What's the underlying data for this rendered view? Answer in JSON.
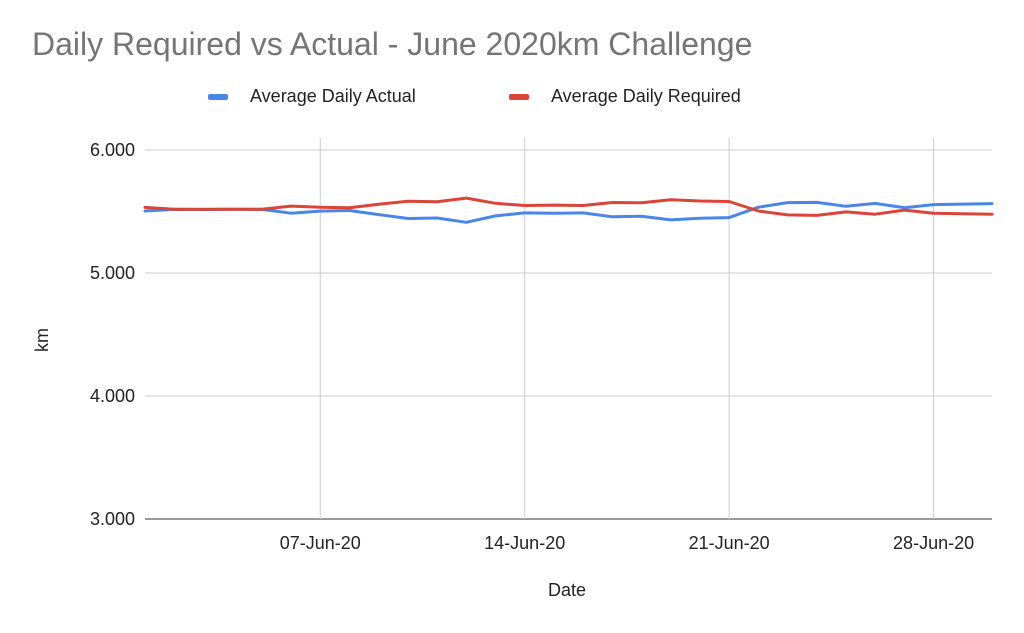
{
  "chart_data": {
    "type": "line",
    "title": "Daily Required vs Actual - June 2020km Challenge",
    "xlabel": "Date",
    "ylabel": "km",
    "ylim": [
      3.0,
      6.0
    ],
    "xlim": [
      "2020-06-01",
      "2020-06-30"
    ],
    "y_ticks": [
      "3.000",
      "4.000",
      "5.000",
      "6.000"
    ],
    "x_ticks": [
      {
        "date": "2020-06-07",
        "label": "07-Jun-20"
      },
      {
        "date": "2020-06-14",
        "label": "14-Jun-20"
      },
      {
        "date": "2020-06-21",
        "label": "21-Jun-20"
      },
      {
        "date": "2020-06-28",
        "label": "28-Jun-20"
      }
    ],
    "grid": true,
    "legend_position": "top",
    "x": [
      "2020-06-01",
      "2020-06-02",
      "2020-06-03",
      "2020-06-04",
      "2020-06-05",
      "2020-06-06",
      "2020-06-07",
      "2020-06-08",
      "2020-06-09",
      "2020-06-10",
      "2020-06-11",
      "2020-06-12",
      "2020-06-13",
      "2020-06-14",
      "2020-06-15",
      "2020-06-16",
      "2020-06-17",
      "2020-06-18",
      "2020-06-19",
      "2020-06-20",
      "2020-06-21",
      "2020-06-22",
      "2020-06-23",
      "2020-06-24",
      "2020-06-25",
      "2020-06-26",
      "2020-06-27",
      "2020-06-28",
      "2020-06-29",
      "2020-06-30"
    ],
    "series": [
      {
        "name": "Average Daily Actual",
        "color": "#4a86e8",
        "values": [
          5.504,
          5.517,
          5.516,
          5.518,
          5.517,
          5.486,
          5.503,
          5.508,
          5.475,
          5.443,
          5.447,
          5.412,
          5.464,
          5.489,
          5.485,
          5.489,
          5.457,
          5.462,
          5.432,
          5.445,
          5.45,
          5.535,
          5.572,
          5.574,
          5.542,
          5.566,
          5.531,
          5.556,
          5.56,
          5.564
        ]
      },
      {
        "name": "Average Daily Required",
        "color": "#db4437",
        "values": [
          5.533,
          5.519,
          5.519,
          5.518,
          5.519,
          5.544,
          5.534,
          5.53,
          5.559,
          5.583,
          5.58,
          5.609,
          5.567,
          5.549,
          5.552,
          5.549,
          5.573,
          5.571,
          5.596,
          5.585,
          5.581,
          5.504,
          5.472,
          5.468,
          5.497,
          5.478,
          5.511,
          5.485,
          5.481,
          5.478
        ]
      }
    ]
  }
}
